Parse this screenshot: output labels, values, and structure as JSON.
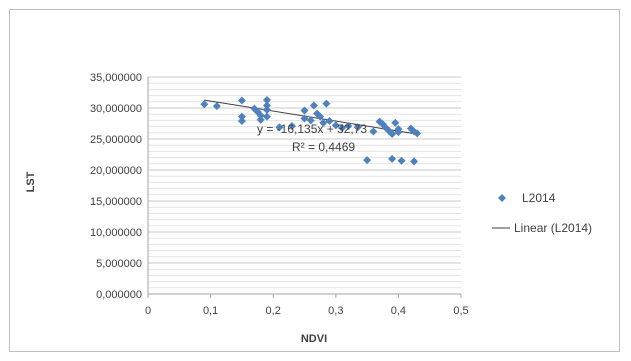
{
  "chart_data": {
    "type": "scatter",
    "title": "",
    "xlabel": "NDVI",
    "ylabel": "LST",
    "xlim": [
      0,
      0.5
    ],
    "ylim": [
      0,
      35
    ],
    "x_ticks": [
      0,
      0.1,
      0.2,
      0.3,
      0.4,
      0.5
    ],
    "x_tick_labels": [
      "0",
      "0,1",
      "0,2",
      "0,3",
      "0,4",
      "0,5"
    ],
    "y_ticks": [
      0,
      5,
      10,
      15,
      20,
      25,
      30,
      35
    ],
    "y_tick_labels": [
      "0,000000",
      "5,000000",
      "10,000000",
      "15,000000",
      "20,000000",
      "25,000000",
      "30,000000",
      "35,000000"
    ],
    "grid": "horizontal",
    "legend_position": "right",
    "series": [
      {
        "name": "L2014",
        "color": "#4f81bd",
        "marker": "diamond",
        "points": [
          [
            0.09,
            30.6
          ],
          [
            0.11,
            30.3
          ],
          [
            0.15,
            31.2
          ],
          [
            0.15,
            28.6
          ],
          [
            0.15,
            27.9
          ],
          [
            0.17,
            29.9
          ],
          [
            0.175,
            29.4
          ],
          [
            0.18,
            28.8
          ],
          [
            0.18,
            28.1
          ],
          [
            0.19,
            31.3
          ],
          [
            0.19,
            30.4
          ],
          [
            0.19,
            29.7
          ],
          [
            0.19,
            28.6
          ],
          [
            0.21,
            26.9
          ],
          [
            0.23,
            27.1
          ],
          [
            0.25,
            29.6
          ],
          [
            0.25,
            28.3
          ],
          [
            0.26,
            28.0
          ],
          [
            0.265,
            30.4
          ],
          [
            0.27,
            29.1
          ],
          [
            0.275,
            28.6
          ],
          [
            0.28,
            27.6
          ],
          [
            0.285,
            30.7
          ],
          [
            0.29,
            27.9
          ],
          [
            0.3,
            27.2
          ],
          [
            0.31,
            26.8
          ],
          [
            0.32,
            27.1
          ],
          [
            0.335,
            26.9
          ],
          [
            0.35,
            21.6
          ],
          [
            0.36,
            26.2
          ],
          [
            0.37,
            27.8
          ],
          [
            0.375,
            27.4
          ],
          [
            0.38,
            26.8
          ],
          [
            0.385,
            26.3
          ],
          [
            0.39,
            25.8
          ],
          [
            0.39,
            21.8
          ],
          [
            0.395,
            27.6
          ],
          [
            0.4,
            26.6
          ],
          [
            0.4,
            26.1
          ],
          [
            0.405,
            21.5
          ],
          [
            0.42,
            26.7
          ],
          [
            0.425,
            26.2
          ],
          [
            0.425,
            21.4
          ],
          [
            0.43,
            25.9
          ]
        ]
      }
    ],
    "trendline": {
      "name": "Linear (L2014)",
      "type": "linear",
      "slope": -16.135,
      "intercept": 32.73,
      "x_range": [
        0.09,
        0.43
      ],
      "color": "#404040"
    },
    "annotations": {
      "equation": "y = -16,135x + 32,73",
      "r_squared": "R² = 0,4469"
    }
  }
}
